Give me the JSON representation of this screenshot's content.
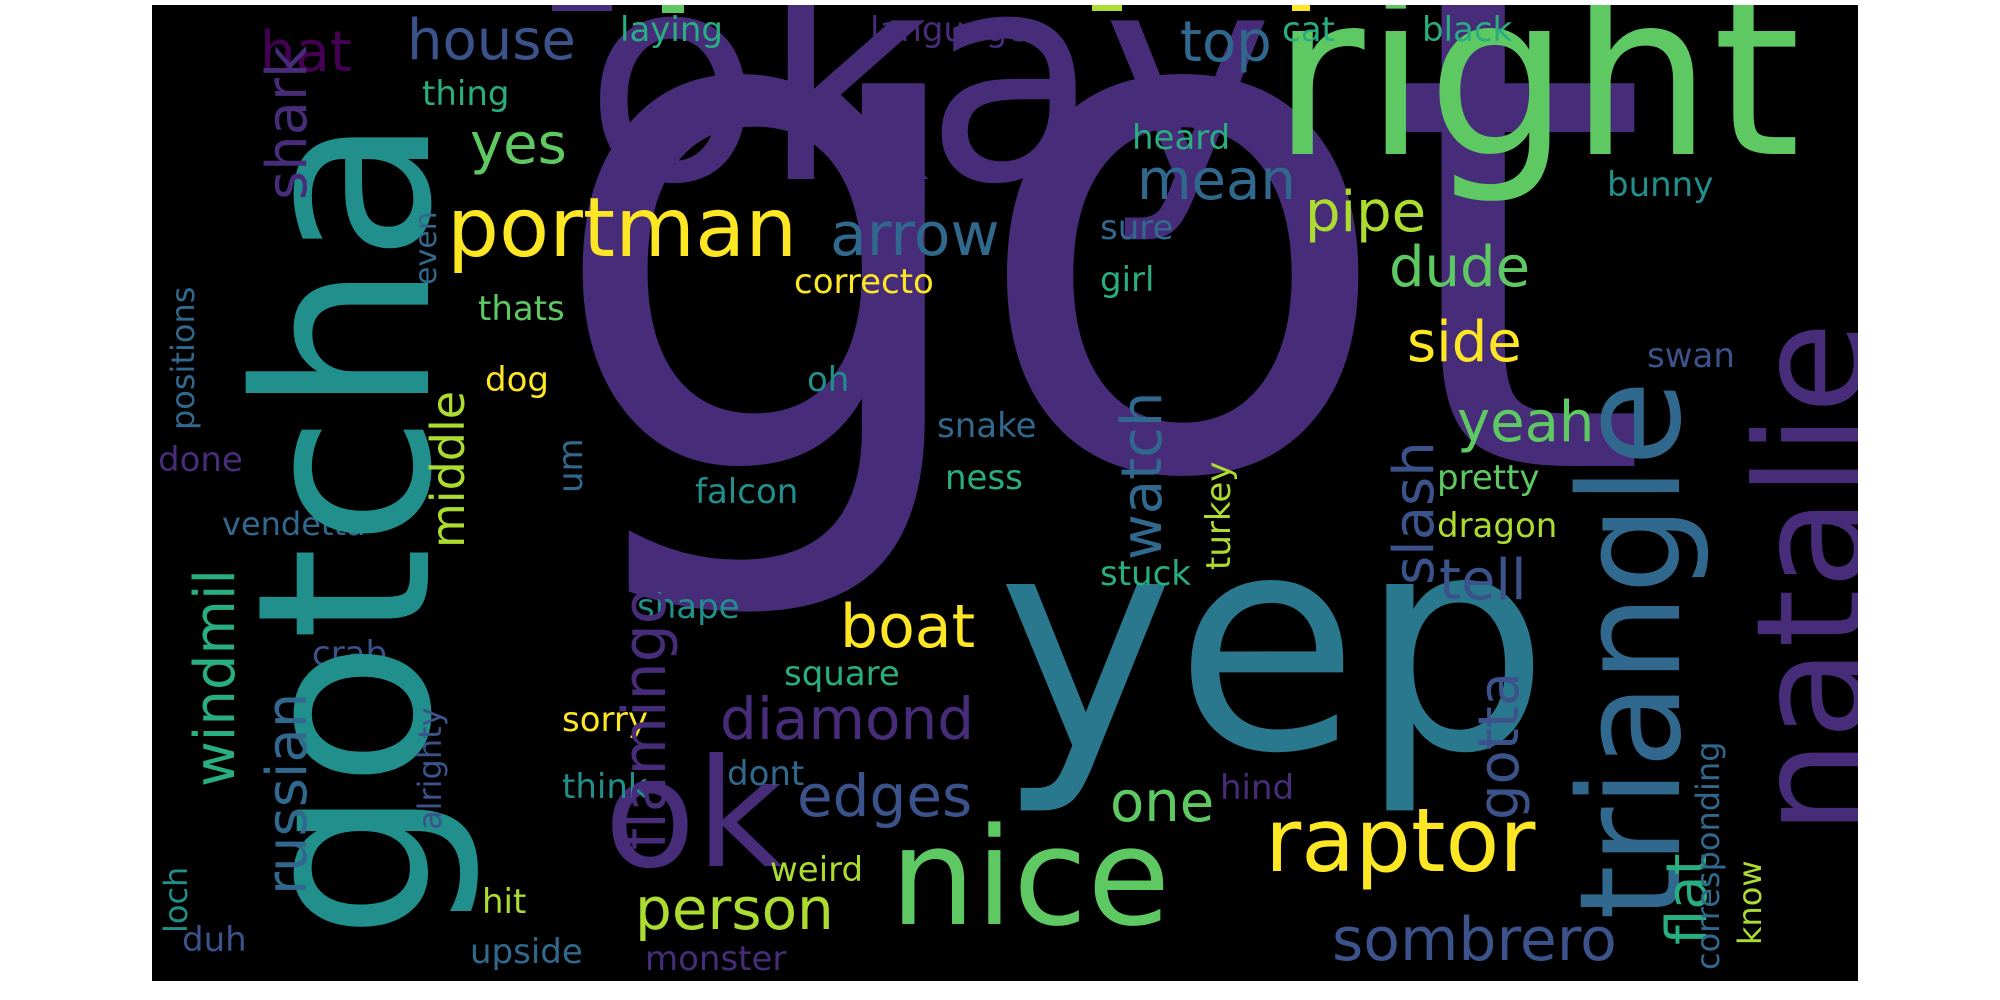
{
  "panel_background": "#000000",
  "palette": {
    "dark_purple": "#440154",
    "indigo": "#472C7A",
    "slate_blue": "#3B528B",
    "steel": "#31688E",
    "teal": "#21908C",
    "sea_green": "#28AE80",
    "green": "#5EC962",
    "lime": "#ADDC30",
    "yellow": "#FDE725"
  },
  "words": [
    {
      "id": "got",
      "text": "got",
      "color": "#472C7A"
    },
    {
      "id": "okay",
      "text": "okay",
      "color": "#472C7A"
    },
    {
      "id": "right",
      "text": "right",
      "color": "#5EC962"
    },
    {
      "id": "gotcha",
      "text": "gotcha",
      "color": "#21908C"
    },
    {
      "id": "yep",
      "text": "yep",
      "color": "#2A788E"
    },
    {
      "id": "triangle",
      "text": "triangle",
      "color": "#31688E"
    },
    {
      "id": "natalie",
      "text": "natalie",
      "color": "#472C7A"
    },
    {
      "id": "nice",
      "text": "nice",
      "color": "#5EC962"
    },
    {
      "id": "ok",
      "text": "ok",
      "color": "#472C7A"
    },
    {
      "id": "portman",
      "text": "portman",
      "color": "#FDE725"
    },
    {
      "id": "raptor",
      "text": "raptor",
      "color": "#FDE725"
    },
    {
      "id": "flamingo",
      "text": "flamingo",
      "color": "#472C7A"
    },
    {
      "id": "arrow",
      "text": "arrow",
      "color": "#31688E"
    },
    {
      "id": "diamond",
      "text": "diamond",
      "color": "#472C7A"
    },
    {
      "id": "edges",
      "text": "edges",
      "color": "#3B528B"
    },
    {
      "id": "sombrero",
      "text": "sombrero",
      "color": "#3B528B"
    },
    {
      "id": "person",
      "text": "person",
      "color": "#ADDC30"
    },
    {
      "id": "boat",
      "text": "boat",
      "color": "#FDE725"
    },
    {
      "id": "house",
      "text": "house",
      "color": "#3B528B"
    },
    {
      "id": "mean",
      "text": "mean",
      "color": "#31688E"
    },
    {
      "id": "pipe",
      "text": "pipe",
      "color": "#ADDC30"
    },
    {
      "id": "dude",
      "text": "dude",
      "color": "#5EC962"
    },
    {
      "id": "top",
      "text": "top",
      "color": "#31688E"
    },
    {
      "id": "yes",
      "text": "yes",
      "color": "#5EC962"
    },
    {
      "id": "hat",
      "text": "hat",
      "color": "#440154"
    },
    {
      "id": "side",
      "text": "side",
      "color": "#FDE725"
    },
    {
      "id": "yeah",
      "text": "yeah",
      "color": "#5EC962"
    },
    {
      "id": "tell",
      "text": "tell",
      "color": "#3B528B"
    },
    {
      "id": "one",
      "text": "one",
      "color": "#5EC962"
    },
    {
      "id": "shark",
      "text": "shark",
      "color": "#472C7A"
    },
    {
      "id": "russian",
      "text": "russian",
      "color": "#31688E"
    },
    {
      "id": "windmil",
      "text": "windmil",
      "color": "#28AE80"
    },
    {
      "id": "middle",
      "text": "middle",
      "color": "#ADDC30"
    },
    {
      "id": "watch",
      "text": "watch",
      "color": "#31688E"
    },
    {
      "id": "slash",
      "text": "slash",
      "color": "#3B528B"
    },
    {
      "id": "gotta",
      "text": "gotta",
      "color": "#3B528B"
    },
    {
      "id": "flat",
      "text": "flat",
      "color": "#28AE80"
    },
    {
      "id": "cat",
      "text": "cat",
      "color": "#28AE80"
    },
    {
      "id": "black",
      "text": "black",
      "color": "#28AE80"
    },
    {
      "id": "language",
      "text": "language",
      "color": "#472C7A"
    },
    {
      "id": "laying",
      "text": "laying",
      "color": "#28AE80"
    },
    {
      "id": "thing",
      "text": "thing",
      "color": "#28AE80"
    },
    {
      "id": "heard",
      "text": "heard",
      "color": "#28AE80"
    },
    {
      "id": "bunny",
      "text": "bunny",
      "color": "#21908C"
    },
    {
      "id": "sure",
      "text": "sure",
      "color": "#31688E"
    },
    {
      "id": "correcto",
      "text": "correcto",
      "color": "#FDE725"
    },
    {
      "id": "girl",
      "text": "girl",
      "color": "#28AE80"
    },
    {
      "id": "thats",
      "text": "thats",
      "color": "#5EC962"
    },
    {
      "id": "dog",
      "text": "dog",
      "color": "#FDE725"
    },
    {
      "id": "oh",
      "text": "oh",
      "color": "#21908C"
    },
    {
      "id": "snake",
      "text": "snake",
      "color": "#31688E"
    },
    {
      "id": "ness",
      "text": "ness",
      "color": "#28AE80"
    },
    {
      "id": "swan",
      "text": "swan",
      "color": "#3B528B"
    },
    {
      "id": "pretty",
      "text": "pretty",
      "color": "#5EC962"
    },
    {
      "id": "dragon",
      "text": "dragon",
      "color": "#ADDC30"
    },
    {
      "id": "falcon",
      "text": "falcon",
      "color": "#21908C"
    },
    {
      "id": "vendetta",
      "text": "vendetta",
      "color": "#31688E"
    },
    {
      "id": "stuck",
      "text": "stuck",
      "color": "#28AE80"
    },
    {
      "id": "shape",
      "text": "shape",
      "color": "#21908C"
    },
    {
      "id": "square",
      "text": "square",
      "color": "#28AE80"
    },
    {
      "id": "crab",
      "text": "crab",
      "color": "#3B528B"
    },
    {
      "id": "sorry",
      "text": "sorry",
      "color": "#FDE725"
    },
    {
      "id": "think",
      "text": "think",
      "color": "#21908C"
    },
    {
      "id": "dont",
      "text": "dont",
      "color": "#31688E"
    },
    {
      "id": "hind",
      "text": "hind",
      "color": "#472C7A"
    },
    {
      "id": "weird",
      "text": "weird",
      "color": "#ADDC30"
    },
    {
      "id": "hit",
      "text": "hit",
      "color": "#ADDC30"
    },
    {
      "id": "duh",
      "text": "duh",
      "color": "#3B528B"
    },
    {
      "id": "upside",
      "text": "upside",
      "color": "#31688E"
    },
    {
      "id": "monster",
      "text": "monster",
      "color": "#472C7A"
    },
    {
      "id": "done",
      "text": "done",
      "color": "#472C7A"
    },
    {
      "id": "positions",
      "text": "positions",
      "color": "#31688E"
    },
    {
      "id": "even",
      "text": "even",
      "color": "#31688E"
    },
    {
      "id": "um",
      "text": "um",
      "color": "#31688E"
    },
    {
      "id": "turkey",
      "text": "turkey",
      "color": "#ADDC30"
    },
    {
      "id": "alrighty",
      "text": "alrighty",
      "color": "#3B528B"
    },
    {
      "id": "loch",
      "text": "loch",
      "color": "#21908C"
    },
    {
      "id": "corresponding",
      "text": "corresponding",
      "color": "#31688E"
    },
    {
      "id": "know",
      "text": "know",
      "color": "#ADDC30"
    }
  ]
}
